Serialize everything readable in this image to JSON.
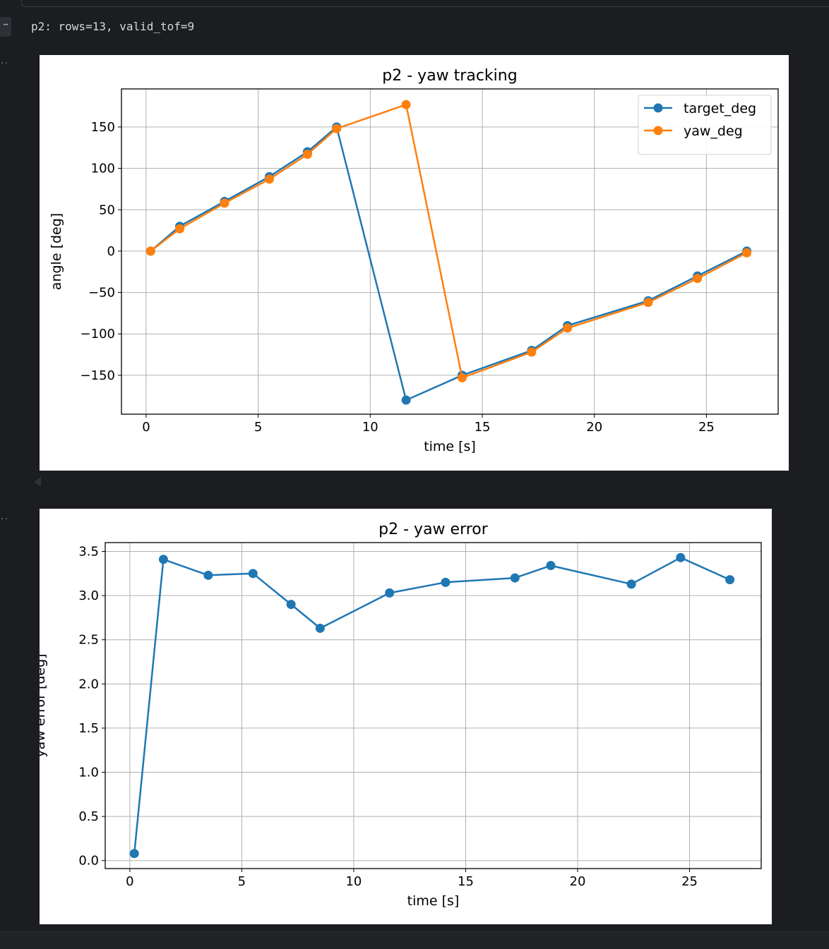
{
  "cell": {
    "run_indicator": "⋯",
    "stdout": "p2: rows=13, valid_tof=9"
  },
  "colors": {
    "series_blue": "#1f77b4",
    "series_orange": "#ff7f0e",
    "grid": "#b0b0b0",
    "background_dark": "#1b1d21"
  },
  "chart_data": [
    {
      "type": "line",
      "title": "p2 - yaw tracking",
      "xlabel": "time [s]",
      "ylabel": "angle [deg]",
      "xlim": [
        -1.1,
        28.2
      ],
      "ylim": [
        -197,
        196
      ],
      "xticks": [
        0,
        5,
        10,
        15,
        20,
        25
      ],
      "xtick_labels": [
        "0",
        "5",
        "10",
        "15",
        "20",
        "25"
      ],
      "yticks": [
        150,
        100,
        50,
        0,
        -50,
        -100,
        -150
      ],
      "ytick_labels": [
        "150",
        "100",
        "50",
        "0",
        "−50",
        "−100",
        "−150"
      ],
      "grid": true,
      "legend": "top-right",
      "markers": true,
      "series": [
        {
          "name": "target_deg",
          "color": "#1f77b4",
          "x": [
            0.2,
            1.5,
            3.5,
            5.5,
            7.2,
            8.5,
            11.6,
            14.1,
            17.2,
            18.8,
            22.4,
            24.6,
            26.8
          ],
          "y": [
            0,
            30,
            60,
            90,
            120,
            150,
            -180,
            -150,
            -120,
            -90,
            -60,
            -30,
            0
          ]
        },
        {
          "name": "yaw_deg",
          "color": "#ff7f0e",
          "x": [
            0.2,
            1.5,
            3.5,
            5.5,
            7.2,
            8.5,
            11.6,
            14.1,
            17.2,
            18.8,
            22.4,
            24.6,
            26.8
          ],
          "y": [
            0,
            27,
            58,
            87,
            117,
            148,
            177,
            -153,
            -122,
            -93,
            -62,
            -33,
            -2
          ]
        }
      ]
    },
    {
      "type": "line",
      "title": "p2 - yaw error",
      "xlabel": "time [s]",
      "ylabel": "yaw error [deg]",
      "xlim": [
        -1.1,
        28.2
      ],
      "ylim": [
        -0.09,
        3.6
      ],
      "xticks": [
        0,
        5,
        10,
        15,
        20,
        25
      ],
      "xtick_labels": [
        "0",
        "5",
        "10",
        "15",
        "20",
        "25"
      ],
      "yticks": [
        3.5,
        3.0,
        2.5,
        2.0,
        1.5,
        1.0,
        0.5,
        0.0
      ],
      "ytick_labels": [
        "3.5",
        "3.0",
        "2.5",
        "2.0",
        "1.5",
        "1.0",
        "0.5",
        "0.0"
      ],
      "grid": true,
      "legend": "none",
      "markers": true,
      "series": [
        {
          "color": "#1f77b4",
          "x": [
            0.2,
            1.5,
            3.5,
            5.5,
            7.2,
            8.5,
            11.6,
            14.1,
            17.2,
            18.8,
            22.4,
            24.6,
            26.8
          ],
          "y": [
            0.08,
            3.41,
            3.23,
            3.25,
            2.9,
            2.63,
            3.03,
            3.15,
            3.2,
            3.34,
            3.13,
            3.43,
            3.18
          ]
        }
      ]
    }
  ]
}
